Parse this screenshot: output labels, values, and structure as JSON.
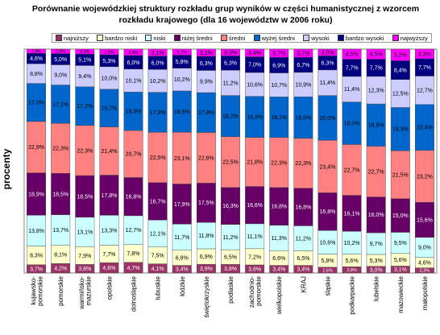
{
  "title_line1": "Porównanie wojewódzkiej struktury rozkładu grup wyników w części humanistycznej z wzorcem",
  "title_line2": "rozkładu krajowego (dla 16 województw w 2006 roku)",
  "chart_data": {
    "type": "bar",
    "stacked": true,
    "percent": true,
    "title": "Porównanie wojewódzkiej struktury rozkładu grup wyników w części humanistycznej z wzorcem rozkładu krajowego (dla 16 województw w 2006 roku)",
    "ylabel": "procenty",
    "xlabel": "",
    "ylim": [
      0,
      100
    ],
    "legend_position": "top",
    "categories": [
      "kujawsko-pomorskie",
      "pomorskie",
      "warmińsko-mazurskie",
      "opolskie",
      "dolnośląskie",
      "lubuskie",
      "łódzkie",
      "świętokrzyskie",
      "podlaskie",
      "zachodnio-pomorskie",
      "wielkopolskie",
      "KRAJ",
      "śląskie",
      "podkarpackie",
      "lubelskie",
      "mazowieckie",
      "małopolskie"
    ],
    "category_lines": [
      [
        "kujawsko-",
        "pomorskie"
      ],
      [
        "pomorskie"
      ],
      [
        "warmińsko-",
        "mazurskie"
      ],
      [
        "opolskie"
      ],
      [
        "dolnośląskie"
      ],
      [
        "lubuskie"
      ],
      [
        "łódzkie"
      ],
      [
        "świętokrzyskie"
      ],
      [
        "podlaskie"
      ],
      [
        "zachodnio-",
        "pomorskie"
      ],
      [
        "wielkopolskie"
      ],
      [
        "KRAJ"
      ],
      [
        "śląskie"
      ],
      [
        "podkarpackie"
      ],
      [
        "lubelskie"
      ],
      [
        "mazowieckie"
      ],
      [
        "małopolskie"
      ]
    ],
    "series": [
      {
        "name": "najniższy",
        "color": "#993366",
        "values": [
          3.7,
          4.2,
          3.8,
          4.6,
          4.7,
          4.1,
          3.4,
          3.9,
          3.8,
          3.6,
          3.4,
          3.4,
          2.6,
          2.8,
          3.0,
          3.1,
          2.3
        ]
      },
      {
        "name": "bardzo niski",
        "color": "#ffffcc",
        "values": [
          8.3,
          8.1,
          7.9,
          7.7,
          7.8,
          7.5,
          6.8,
          6.9,
          6.5,
          7.2,
          6.6,
          6.5,
          5.8,
          5.6,
          5.3,
          5.6,
          4.6
        ]
      },
      {
        "name": "niski",
        "color": "#ccffff",
        "values": [
          13.8,
          13.7,
          13.1,
          13.3,
          12.7,
          12.1,
          11.7,
          11.8,
          11.2,
          11.1,
          11.3,
          11.2,
          10.6,
          10.2,
          9.7,
          9.5,
          9.0
        ]
      },
      {
        "name": "niżej średni",
        "color": "#660066",
        "values": [
          18.9,
          18.5,
          18.5,
          17.8,
          16.8,
          16.7,
          17.9,
          17.5,
          16.3,
          16.6,
          16.8,
          16.8,
          16.8,
          16.1,
          16.0,
          15.0,
          15.6
        ]
      },
      {
        "name": "średni",
        "color": "#ff8080",
        "values": [
          22.9,
          22.3,
          22.3,
          21.4,
          20.7,
          22.5,
          23.1,
          22.6,
          22.5,
          21.8,
          22.3,
          22.3,
          23.4,
          22.7,
          22.7,
          21.5,
          23.2
        ]
      },
      {
        "name": "wyżej średni",
        "color": "#0066cc",
        "values": [
          17.0,
          17.1,
          17.2,
          16.7,
          16.9,
          17.9,
          18.5,
          17.8,
          18.2,
          18.3,
          18.1,
          18.6,
          20.0,
          19.0,
          18.9,
          19.3,
          20.4
        ]
      },
      {
        "name": "wysoki",
        "color": "#ccccff",
        "values": [
          8.8,
          9.0,
          9.4,
          10.0,
          10.1,
          10.2,
          10.2,
          9.9,
          11.2,
          10.6,
          10.7,
          10.9,
          11.4,
          11.4,
          12.3,
          12.5,
          12.7
        ]
      },
      {
        "name": "bardzo wysoki",
        "color": "#000080",
        "values": [
          4.6,
          5.0,
          5.1,
          5.3,
          6.0,
          6.0,
          5.8,
          6.3,
          6.3,
          7.0,
          6.9,
          6.7,
          6.3,
          7.7,
          7.7,
          8.4,
          7.7
        ]
      },
      {
        "name": "najwyższy",
        "color": "#ff00ff",
        "values": [
          1.9,
          2.0,
          2.2,
          2.5,
          2.8,
          3.1,
          2.7,
          3.2,
          3.0,
          3.4,
          3.7,
          3.7,
          3.0,
          4.5,
          4.5,
          5.2,
          4.3
        ]
      }
    ],
    "label_colors": {
      "najniższy": "#ffffff",
      "bardzo niski": "#000000",
      "niski": "#000000",
      "niżej średni": "#ffffff",
      "średni": "#000000",
      "wyżej średni": "#000000",
      "wysoki": "#000000",
      "bardzo wysoki": "#ffffff",
      "najwyższy": "#000000"
    }
  }
}
